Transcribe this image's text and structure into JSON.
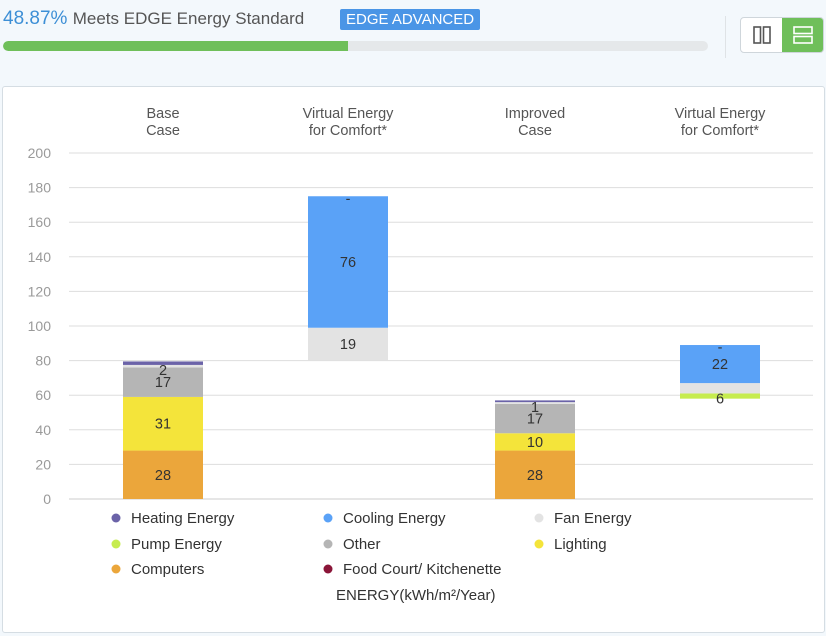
{
  "header": {
    "percent": "48.87%",
    "meets_text": "Meets EDGE Energy Standard",
    "badge": "EDGE ADVANCED",
    "progress_fraction": 0.4887,
    "colors": {
      "percent": "#3d8fd6",
      "badge": "#4a95e6",
      "progress": "#6fbf5a",
      "toggle_active": "#6fbf5a"
    }
  },
  "view_toggle": {
    "items": [
      {
        "icon": "columns-view-icon",
        "active": false
      },
      {
        "icon": "rows-view-icon",
        "active": true
      }
    ]
  },
  "chart_data": {
    "type": "bar",
    "stacked": true,
    "ylim": [
      0,
      200
    ],
    "yticks": [
      0,
      20,
      40,
      60,
      80,
      100,
      120,
      140,
      160,
      180,
      200
    ],
    "grid": true,
    "footer_label": "ENERGY(kWh/m²/Year)",
    "columns": [
      {
        "label_lines": [
          "Base",
          "Case"
        ],
        "base": 0,
        "segments": [
          {
            "series": "Computers",
            "value": 28,
            "label": "28"
          },
          {
            "series": "Lighting",
            "value": 31,
            "label": "31"
          },
          {
            "series": "Other",
            "value": 17,
            "label": "17"
          },
          {
            "series": "Fan Energy",
            "value": 1.5,
            "label": ""
          },
          {
            "series": "Heating Energy",
            "value": 2,
            "label": "2"
          }
        ]
      },
      {
        "label_lines": [
          "Virtual Energy",
          "for Comfort*"
        ],
        "base": 80,
        "segments": [
          {
            "series": "Fan Energy",
            "value": 19,
            "label": "19"
          },
          {
            "series": "Cooling Energy",
            "value": 76,
            "label": "76"
          },
          {
            "series": "Heating Energy",
            "value": 0,
            "label": "-"
          }
        ]
      },
      {
        "label_lines": [
          "Improved",
          "Case"
        ],
        "base": 0,
        "segments": [
          {
            "series": "Computers",
            "value": 28,
            "label": "28"
          },
          {
            "series": "Lighting",
            "value": 10,
            "label": "10"
          },
          {
            "series": "Other",
            "value": 17,
            "label": "17"
          },
          {
            "series": "Fan Energy",
            "value": 1,
            "label": ""
          },
          {
            "series": "Heating Energy",
            "value": 1,
            "label": "1"
          }
        ]
      },
      {
        "label_lines": [
          "Virtual Energy",
          "for Comfort*"
        ],
        "base": 58,
        "segments": [
          {
            "series": "Pump Energy",
            "value": 3,
            "label": ""
          },
          {
            "series": "Fan Energy",
            "value": 6,
            "label": "6"
          },
          {
            "series": "Cooling Energy",
            "value": 22,
            "label": "22"
          },
          {
            "series": "Heating Energy",
            "value": 0,
            "label": "-"
          }
        ]
      }
    ],
    "legend": [
      {
        "name": "Heating Energy",
        "color": "#6b63a8"
      },
      {
        "name": "Cooling Energy",
        "color": "#5aa2f7"
      },
      {
        "name": "Fan Energy",
        "color": "#e3e3e3"
      },
      {
        "name": "Pump Energy",
        "color": "#c6ec4f"
      },
      {
        "name": "Other",
        "color": "#b5b5b5"
      },
      {
        "name": "Lighting",
        "color": "#f4e43a"
      },
      {
        "name": "Computers",
        "color": "#eba63b"
      },
      {
        "name": "Food Court/ Kitchenette",
        "color": "#8a1538"
      }
    ]
  }
}
